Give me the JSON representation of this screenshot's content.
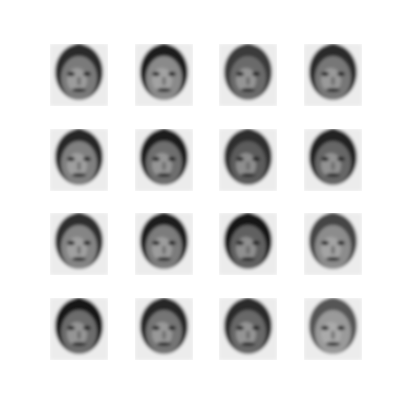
{
  "figure": {
    "rows": 4,
    "cols": 4,
    "samples": [
      {
        "tone": "#7a7a7a",
        "hair": "#2a2a2a"
      },
      {
        "tone": "#8a8a8a",
        "hair": "#1e1e1e"
      },
      {
        "tone": "#6a6a6a",
        "hair": "#3a3a3a"
      },
      {
        "tone": "#777777",
        "hair": "#2c2c2c"
      },
      {
        "tone": "#808080",
        "hair": "#262626"
      },
      {
        "tone": "#6e6e6e",
        "hair": "#1a1a1a"
      },
      {
        "tone": "#5c5c5c",
        "hair": "#2f2f2f"
      },
      {
        "tone": "#666666",
        "hair": "#232323"
      },
      {
        "tone": "#858585",
        "hair": "#2d2d2d"
      },
      {
        "tone": "#7c7c7c",
        "hair": "#1f1f1f"
      },
      {
        "tone": "#606060",
        "hair": "#151515"
      },
      {
        "tone": "#8c8c8c",
        "hair": "#444444"
      },
      {
        "tone": "#6c6c6c",
        "hair": "#141414"
      },
      {
        "tone": "#747474",
        "hair": "#262626"
      },
      {
        "tone": "#686868",
        "hair": "#2b2b2b"
      },
      {
        "tone": "#9a9a9a",
        "hair": "#555555"
      }
    ]
  }
}
